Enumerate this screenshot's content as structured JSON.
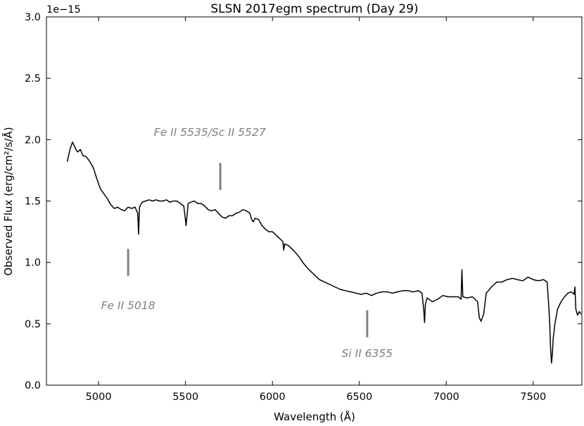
{
  "chart_data": {
    "type": "line",
    "title": "SLSN 2017egm spectrum (Day 29)",
    "xlabel": "Wavelength (Å)",
    "ylabel": "Observed Flux (erg/cm²/s/Å)",
    "y_scale_label": "1e−15",
    "xlim": [
      4700,
      7780
    ],
    "ylim": [
      0.0,
      3.0
    ],
    "x_ticks": [
      5000,
      5500,
      6000,
      6500,
      7000,
      7500
    ],
    "x_tick_labels": [
      "5000",
      "5500",
      "6000",
      "6500",
      "7000",
      "7500"
    ],
    "y_ticks": [
      0.0,
      0.5,
      1.0,
      1.5,
      2.0,
      2.5,
      3.0
    ],
    "y_tick_labels": [
      "0.0",
      "0.5",
      "1.0",
      "1.5",
      "2.0",
      "2.5",
      "3.0"
    ],
    "grid": false,
    "line_color": "#000000",
    "annotation_color": "#808080",
    "series": [
      {
        "x": [
          4820,
          4835,
          4850,
          4860,
          4870,
          4880,
          4895,
          4910,
          4930,
          4950,
          4970,
          4990,
          5010,
          5030,
          5050,
          5070,
          5090,
          5110,
          5130,
          5150,
          5170,
          5190,
          5210,
          5225,
          5230,
          5235,
          5250,
          5270,
          5290,
          5310,
          5330,
          5350,
          5370,
          5390,
          5410,
          5430,
          5450,
          5470,
          5490,
          5500,
          5503,
          5506,
          5515,
          5530,
          5550,
          5570,
          5590,
          5610,
          5630,
          5650,
          5670,
          5690,
          5710,
          5730,
          5750,
          5770,
          5790,
          5810,
          5830,
          5850,
          5870,
          5880,
          5890,
          5900,
          5920,
          5940,
          5960,
          5980,
          6000,
          6030,
          6060,
          6065,
          6070,
          6090,
          6120,
          6150,
          6180,
          6210,
          6240,
          6270,
          6300,
          6330,
          6360,
          6390,
          6420,
          6450,
          6480,
          6510,
          6540,
          6570,
          6600,
          6630,
          6660,
          6690,
          6720,
          6750,
          6780,
          6810,
          6840,
          6860,
          6870,
          6875,
          6880,
          6890,
          6920,
          6950,
          6980,
          7010,
          7040,
          7070,
          7085,
          7090,
          7095,
          7120,
          7150,
          7180,
          7190,
          7200,
          7215,
          7230,
          7260,
          7290,
          7320,
          7350,
          7380,
          7410,
          7440,
          7470,
          7500,
          7530,
          7560,
          7580,
          7590,
          7595,
          7600,
          7605,
          7610,
          7615,
          7625,
          7640,
          7660,
          7680,
          7700,
          7720,
          7735,
          7740,
          7745,
          7755,
          7765,
          7775
        ],
        "y": [
          1.82,
          1.92,
          1.98,
          1.95,
          1.92,
          1.9,
          1.92,
          1.87,
          1.86,
          1.82,
          1.77,
          1.68,
          1.6,
          1.56,
          1.52,
          1.47,
          1.44,
          1.45,
          1.43,
          1.42,
          1.45,
          1.44,
          1.45,
          1.4,
          1.23,
          1.45,
          1.49,
          1.5,
          1.51,
          1.5,
          1.51,
          1.5,
          1.5,
          1.51,
          1.49,
          1.5,
          1.5,
          1.48,
          1.46,
          1.34,
          1.3,
          1.34,
          1.48,
          1.49,
          1.5,
          1.48,
          1.48,
          1.46,
          1.43,
          1.42,
          1.43,
          1.4,
          1.37,
          1.36,
          1.38,
          1.38,
          1.4,
          1.41,
          1.43,
          1.42,
          1.4,
          1.35,
          1.33,
          1.36,
          1.35,
          1.3,
          1.27,
          1.25,
          1.25,
          1.21,
          1.17,
          1.1,
          1.15,
          1.14,
          1.1,
          1.05,
          0.99,
          0.94,
          0.9,
          0.86,
          0.84,
          0.82,
          0.8,
          0.78,
          0.77,
          0.76,
          0.75,
          0.74,
          0.75,
          0.73,
          0.75,
          0.76,
          0.76,
          0.75,
          0.76,
          0.77,
          0.77,
          0.76,
          0.77,
          0.75,
          0.62,
          0.51,
          0.66,
          0.71,
          0.68,
          0.7,
          0.73,
          0.72,
          0.72,
          0.72,
          0.7,
          0.94,
          0.72,
          0.71,
          0.72,
          0.68,
          0.55,
          0.52,
          0.58,
          0.75,
          0.8,
          0.84,
          0.84,
          0.86,
          0.87,
          0.86,
          0.85,
          0.88,
          0.86,
          0.85,
          0.86,
          0.84,
          0.63,
          0.5,
          0.3,
          0.18,
          0.25,
          0.38,
          0.5,
          0.62,
          0.68,
          0.72,
          0.75,
          0.76,
          0.74,
          0.8,
          0.62,
          0.57,
          0.6,
          0.58
        ]
      }
    ],
    "annotations": [
      {
        "text": "Fe II 5535/Sc II 5527",
        "x": 5700,
        "marker_y": [
          1.59,
          1.81
        ],
        "text_y": 2.03,
        "text_anchor_x": 5640
      },
      {
        "text": "Fe II 5018",
        "x": 5170,
        "marker_y": [
          0.89,
          1.11
        ],
        "text_y": 0.62,
        "text_anchor_x": 5170
      },
      {
        "text": "Si II 6355",
        "x": 6545,
        "marker_y": [
          0.39,
          0.61
        ],
        "text_y": 0.23,
        "text_anchor_x": 6545
      }
    ]
  }
}
